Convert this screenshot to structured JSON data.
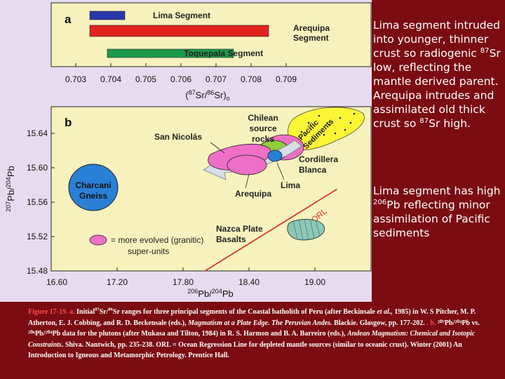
{
  "panel_a": {
    "letter": "a",
    "bars": [
      {
        "label": "Lima Segment",
        "from": 0.7034,
        "to": 0.7044,
        "color": "#2a37a8"
      },
      {
        "label": "Arequipa Segment",
        "from": 0.7034,
        "to": 0.7085,
        "color": "#e0231f"
      },
      {
        "label": "Toquepala Segment",
        "from": 0.7039,
        "to": 0.7075,
        "color": "#1b9a4a"
      }
    ],
    "ticks": [
      "0.703",
      "0.704",
      "0.705",
      "0.706",
      "0.707",
      "0.708",
      "0.709"
    ],
    "xlabel": "(87Sr/86Sr)o",
    "xrange": [
      0.7025,
      0.7095
    ]
  },
  "panel_b": {
    "letter": "b",
    "xticks": [
      "16.60",
      "17.20",
      "17.80",
      "18.40",
      "19.00"
    ],
    "yticks": [
      "15.64",
      "15.60",
      "15.56",
      "15.52",
      "15.48"
    ],
    "xrange": [
      16.6,
      19.2
    ],
    "yrange": [
      15.48,
      15.67
    ],
    "xlabel": "206Pb/204Pb",
    "ylabel": "207Pb/204Pb",
    "labels": {
      "charcani": "Charcani\nGneiss",
      "san_nicolas": "San Nicolás",
      "chilean": "Chilean\nsource\nrocks",
      "pacific": "Pacific\nSediments",
      "cordillera": "Cordillera\nBlanca",
      "lima": "Lima",
      "arequipa": "Arequipa",
      "nazca": "Nazca Plate\nBasalts",
      "orl": "ORL"
    },
    "legend": {
      "text": "= more evolved (granitic)",
      "subtext": "super-units"
    },
    "orl_line": {
      "x": [
        18.0,
        19.2
      ],
      "y": [
        15.48,
        15.575
      ]
    }
  },
  "notes": {
    "note1_parts": [
      "Lima segment intruded into younger, thinner crust so radiogenic ",
      "87",
      "Sr low, reflecting the mantle derived parent. Arequipa intrudes and assimilated old thick crust so ",
      "87",
      "Sr high."
    ],
    "note2_parts": [
      "Lima segment has high ",
      "206",
      "Pb reflecting minor assimilation of Pacific sediments"
    ]
  },
  "caption": {
    "fig": "Figure 17-19. a.",
    "t1": " Initial",
    "s1": "87",
    "t2": "Sr/",
    "s2": "86",
    "t3": "Sr ranges for three principal segments of the Coastal batholith of Peru (after Beckinsale ",
    "etal": "et al.,",
    "t4": " 1985) in W. S Pitcher, M. P. Atherton, E. J. Cobbing, and R. D. Beckensale (eds.), ",
    "book1": "Magmatism at a Plate Edge. The Peruvian Andes.",
    "t5": " Blackie. Glasgow, pp. 177-202. ",
    "b": ". b.",
    "t6": " ²⁰⁷Pb/²⁰⁴Pb vs. ²⁰⁶Pb/²⁰⁴Pb data for the plutons (after Mukasa and Tilton, 1984) in R. S. Harmon and B. A. Barreiro (eds.), ",
    "book2": "Andean Magmatism: Chemical and Isotopic Constraints",
    "t7": ". Shiva. Nantwich, pp. 235-238. ORL = Ocean Regression Line for depleted mantle sources (similar to oceanic crust). Winter (2001) An Introduction to Igneous and Metamorphic Petrology. Prentice Hall."
  }
}
